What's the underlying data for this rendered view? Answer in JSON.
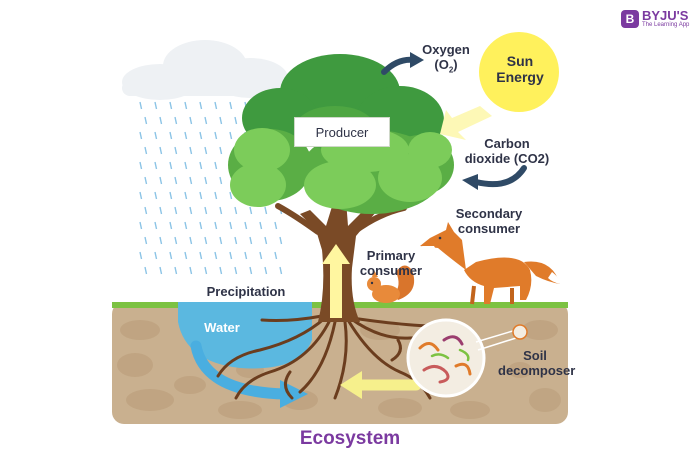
{
  "title": "Ecosystem",
  "brand": {
    "mark": "B",
    "name": "BYJU'S",
    "tagline": "The Learning App"
  },
  "labels": {
    "producer": "Producer",
    "oxygen": [
      "Oxygen",
      "(O",
      "2",
      ")"
    ],
    "sun": [
      "Sun",
      "Energy"
    ],
    "carbon": [
      "Carbon",
      "dioxide (CO2)"
    ],
    "secondary": [
      "Secondary",
      "consumer"
    ],
    "primary": [
      "Primary",
      "consumer"
    ],
    "precipitation": "Precipitation",
    "water": "Water",
    "soil": [
      "Soil",
      "decomposer"
    ]
  },
  "colors": {
    "title": "#7b3aa0",
    "soil": "#c9b08f",
    "grass": "#7cc242",
    "water": "#5bb8e0",
    "leaf_dark": "#3f9a3f",
    "leaf_light": "#7ccc5a",
    "trunk": "#7a4a26",
    "sun": "#fff15c",
    "arrow_dark": "#2f4a66",
    "fox": "#e07b2a"
  }
}
